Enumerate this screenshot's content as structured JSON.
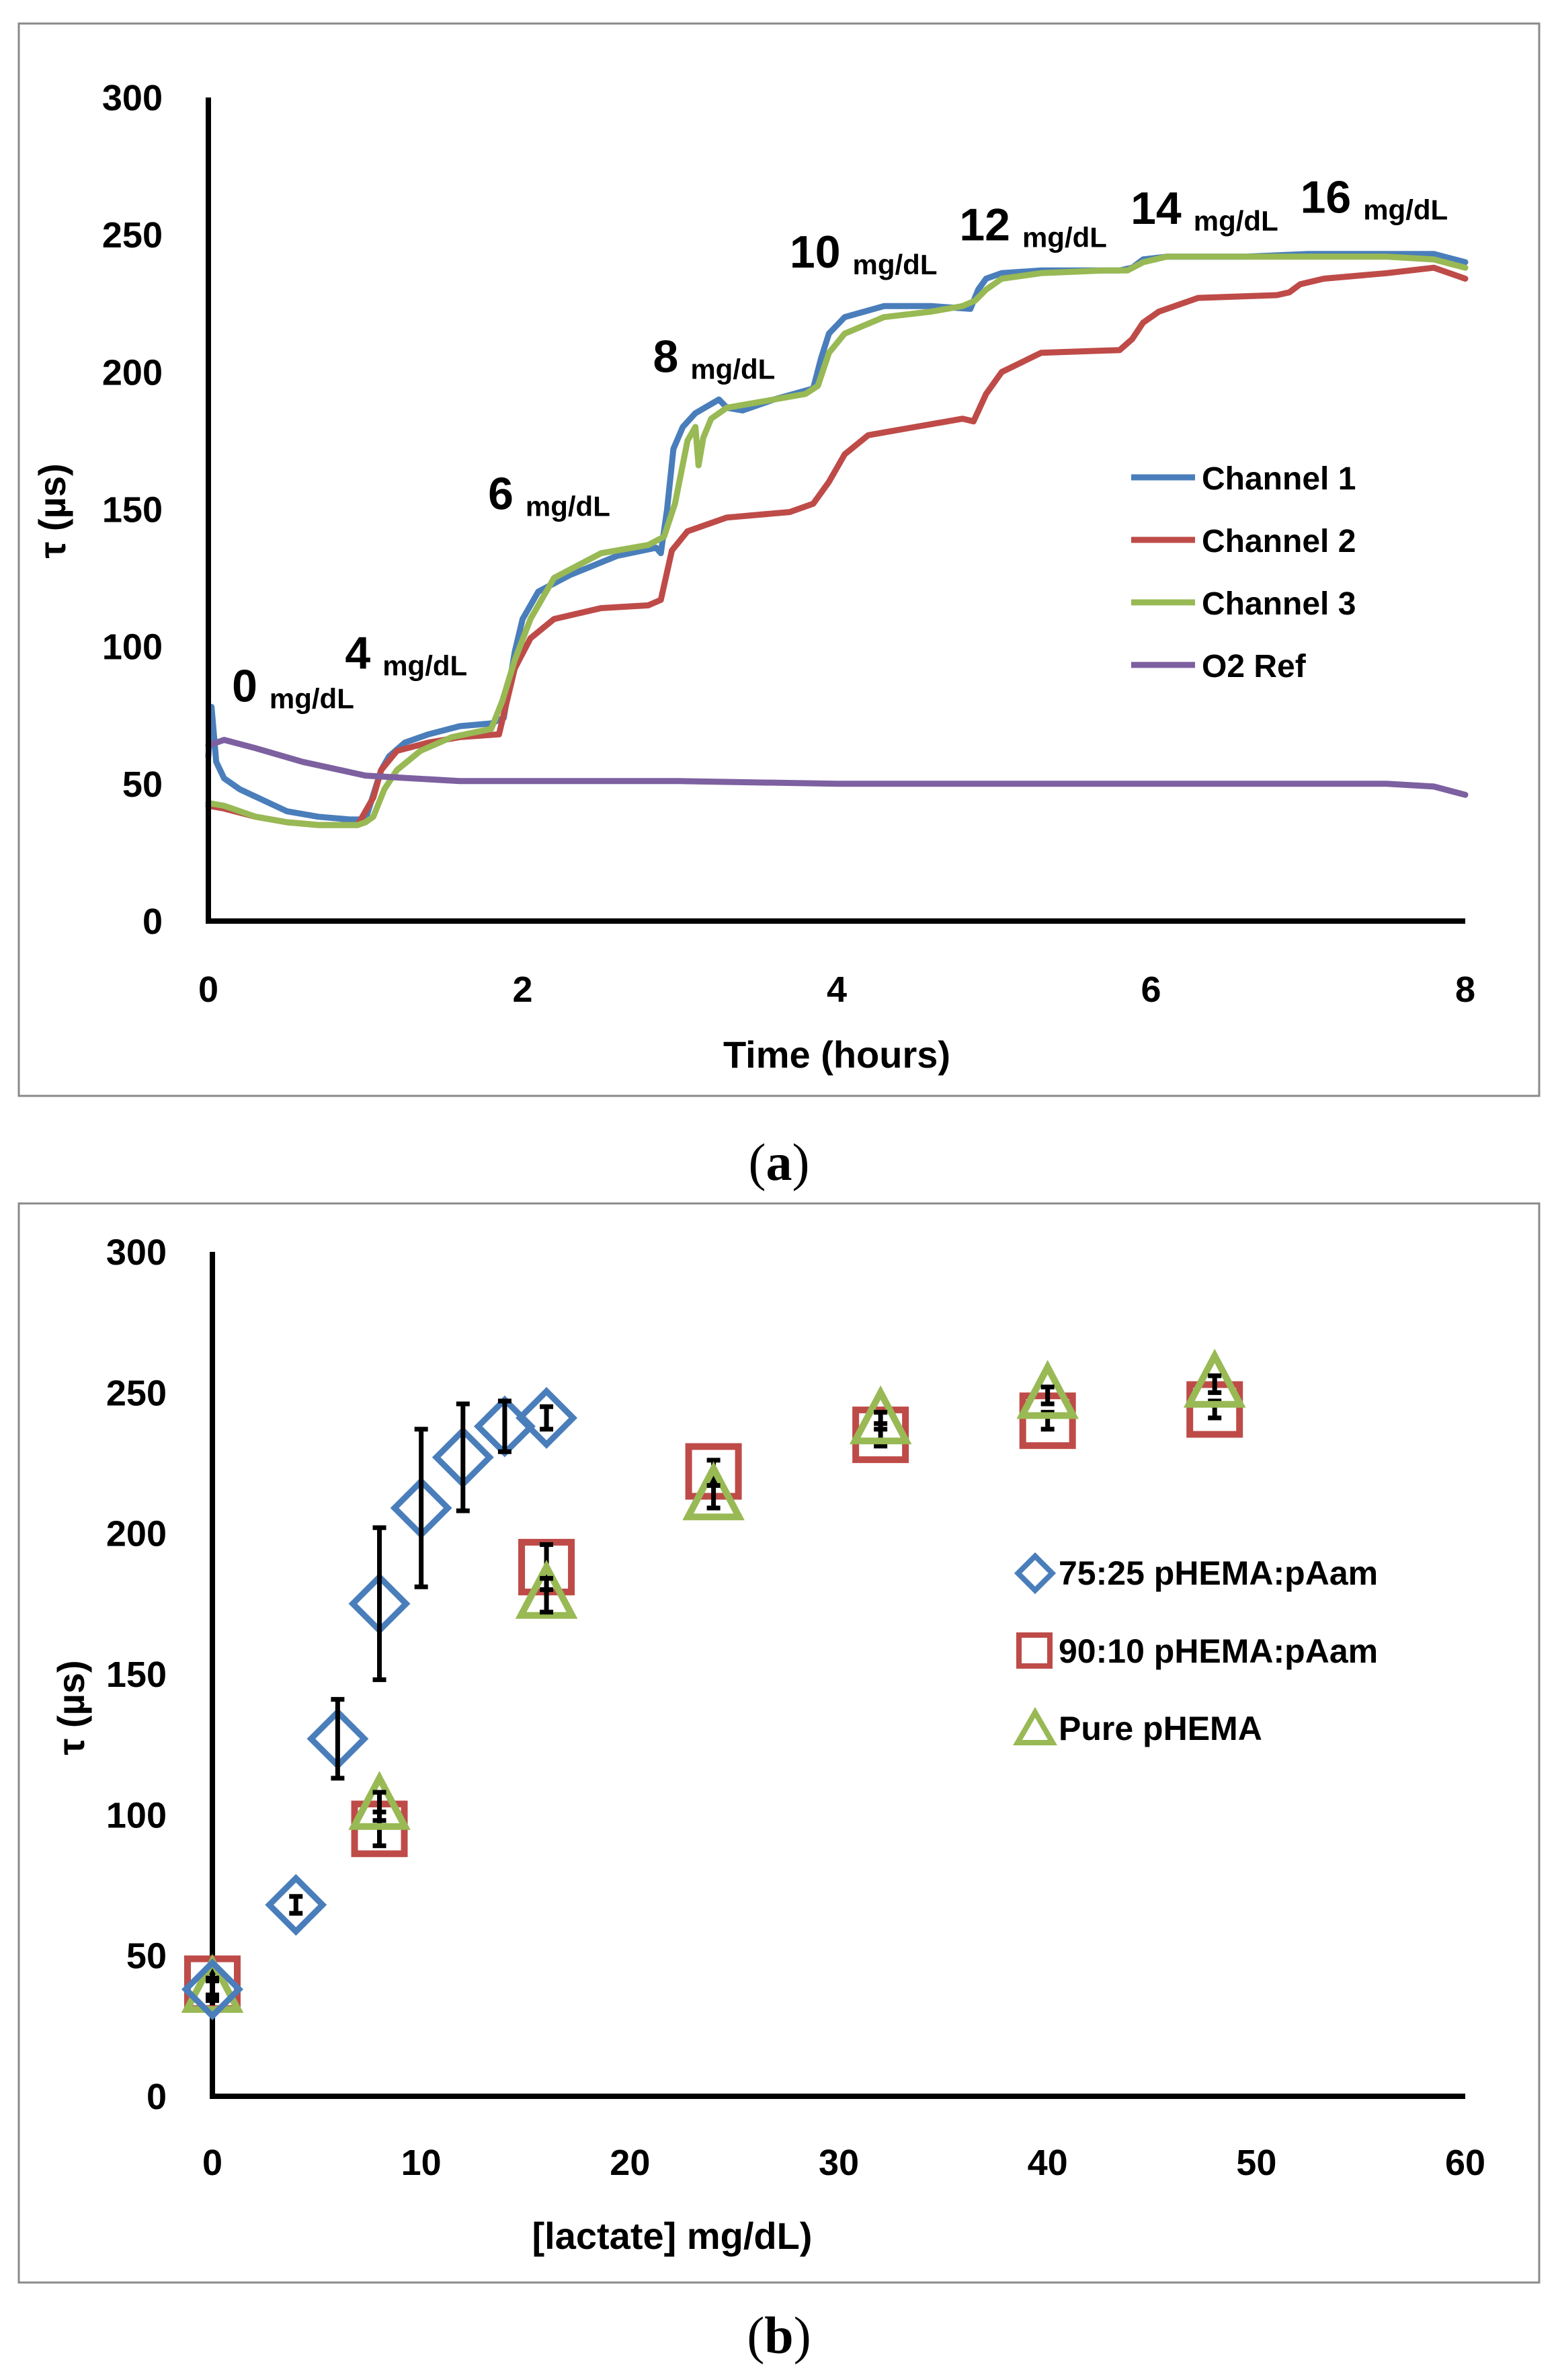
{
  "chart_data": [
    {
      "type": "line",
      "caption": "(a)",
      "caption_parts": {
        "open": "(",
        "letter": "a",
        "close": ")"
      },
      "xlabel": "Time (hours)",
      "ylabel": "τ (µs)",
      "xlim": [
        0,
        8
      ],
      "ylim": [
        0,
        300
      ],
      "xticks": [
        0,
        2,
        4,
        6,
        8
      ],
      "yticks": [
        0,
        50,
        100,
        150,
        200,
        250,
        300
      ],
      "legend_position": "right-middle",
      "annotations": [
        {
          "num": "0",
          "unit": "mg/dL",
          "x": 0.15,
          "y": 80
        },
        {
          "num": "4",
          "unit": "mg/dL",
          "x": 0.87,
          "y": 92
        },
        {
          "num": "6",
          "unit": "mg/dL",
          "x": 1.78,
          "y": 150
        },
        {
          "num": "8",
          "unit": "mg/dL",
          "x": 2.83,
          "y": 200
        },
        {
          "num": "10",
          "unit": "mg/dL",
          "x": 3.7,
          "y": 238
        },
        {
          "num": "12",
          "unit": "mg/dL",
          "x": 4.78,
          "y": 248
        },
        {
          "num": "14",
          "unit": "mg/dL",
          "x": 5.87,
          "y": 254
        },
        {
          "num": "16",
          "unit": "mg/dL",
          "x": 6.95,
          "y": 258
        }
      ],
      "series": [
        {
          "name": "Channel 1",
          "color": "#4a7ebb",
          "x": [
            0,
            0.02,
            0.05,
            0.1,
            0.2,
            0.35,
            0.5,
            0.7,
            0.9,
            1.0,
            1.05,
            1.1,
            1.15,
            1.25,
            1.4,
            1.6,
            1.8,
            1.88,
            1.95,
            2.0,
            2.1,
            2.3,
            2.6,
            2.85,
            2.88,
            2.92,
            2.96,
            3.02,
            3.1,
            3.25,
            3.3,
            3.4,
            3.6,
            3.85,
            3.9,
            3.95,
            4.05,
            4.3,
            4.6,
            4.85,
            4.9,
            4.95,
            5.05,
            5.3,
            5.8,
            5.88,
            5.95,
            6.1,
            6.6,
            7.0,
            7.5,
            7.8,
            8.0
          ],
          "y": [
            60,
            78,
            58,
            52,
            48,
            44,
            40,
            38,
            37,
            37,
            46,
            55,
            60,
            65,
            68,
            71,
            72,
            74,
            98,
            110,
            120,
            126,
            133,
            136,
            134,
            150,
            172,
            180,
            185,
            190,
            187,
            186,
            190,
            194,
            205,
            214,
            220,
            224,
            224,
            223,
            230,
            234,
            236,
            237,
            237,
            238,
            241,
            242,
            242,
            243,
            243,
            243,
            240
          ]
        },
        {
          "name": "Channel 2",
          "color": "#be4b48",
          "x": [
            0,
            0.1,
            0.3,
            0.5,
            0.7,
            0.95,
            1.05,
            1.1,
            1.2,
            1.4,
            1.6,
            1.85,
            1.95,
            2.05,
            2.2,
            2.5,
            2.8,
            2.88,
            2.95,
            3.05,
            3.3,
            3.7,
            3.85,
            3.95,
            4.05,
            4.2,
            4.5,
            4.8,
            4.87,
            4.95,
            5.05,
            5.3,
            5.8,
            5.88,
            5.95,
            6.05,
            6.3,
            6.8,
            6.88,
            6.95,
            7.1,
            7.5,
            7.8,
            8.0
          ],
          "y": [
            42,
            41,
            38,
            36,
            35,
            35,
            45,
            55,
            62,
            65,
            67,
            68,
            92,
            103,
            110,
            114,
            115,
            117,
            135,
            142,
            147,
            149,
            152,
            160,
            170,
            177,
            180,
            183,
            182,
            192,
            200,
            207,
            208,
            212,
            218,
            222,
            227,
            228,
            229,
            232,
            234,
            236,
            238,
            234
          ]
        },
        {
          "name": "Channel 3",
          "color": "#98b954",
          "x": [
            0,
            0.1,
            0.3,
            0.5,
            0.7,
            0.95,
            1.0,
            1.05,
            1.12,
            1.2,
            1.35,
            1.55,
            1.8,
            1.87,
            1.95,
            2.05,
            2.2,
            2.5,
            2.8,
            2.9,
            2.97,
            3.05,
            3.1,
            3.12,
            3.15,
            3.2,
            3.3,
            3.5,
            3.8,
            3.88,
            3.95,
            4.05,
            4.3,
            4.6,
            4.8,
            4.88,
            4.95,
            5.05,
            5.3,
            5.7,
            5.85,
            5.95,
            6.1,
            6.6,
            7.0,
            7.5,
            7.8,
            8.0
          ],
          "y": [
            43,
            42,
            38,
            36,
            35,
            35,
            36,
            38,
            48,
            55,
            62,
            67,
            70,
            80,
            95,
            110,
            125,
            134,
            137,
            140,
            152,
            175,
            180,
            166,
            176,
            183,
            187,
            189,
            192,
            195,
            207,
            214,
            220,
            222,
            224,
            226,
            230,
            234,
            236,
            237,
            237,
            240,
            242,
            242,
            242,
            242,
            241,
            238
          ]
        },
        {
          "name": "O2 Ref",
          "color": "#7d60a0",
          "x": [
            0,
            0.1,
            0.3,
            0.6,
            1.0,
            1.3,
            1.6,
            2.0,
            3.0,
            4.0,
            5.0,
            6.0,
            7.0,
            7.5,
            7.8,
            8.0
          ],
          "y": [
            64,
            66,
            63,
            58,
            53,
            52,
            51,
            51,
            51,
            50,
            50,
            50,
            50,
            50,
            49,
            46
          ]
        }
      ]
    },
    {
      "type": "scatter",
      "caption": "(b)",
      "caption_parts": {
        "open": "(",
        "letter": "b",
        "close": ")"
      },
      "xlabel": "[lactate] mg/dL)",
      "ylabel": "τ (µs)",
      "xlim": [
        0,
        60
      ],
      "ylim": [
        0,
        300
      ],
      "xticks": [
        0,
        10,
        20,
        30,
        40,
        50,
        60
      ],
      "yticks": [
        0,
        50,
        100,
        150,
        200,
        250,
        300
      ],
      "legend_position": "right-middle",
      "series": [
        {
          "name": "75:25 pHEMA:pAam",
          "color": "#4a7ebb",
          "marker": "diamond",
          "x": [
            0,
            4,
            6,
            8,
            10,
            12,
            14,
            16
          ],
          "y": [
            38,
            68,
            127,
            175,
            209,
            227,
            238,
            241
          ],
          "err": [
            4,
            3,
            14,
            27,
            28,
            19,
            9,
            4
          ]
        },
        {
          "name": "90:10 pHEMA:pAam",
          "color": "#be4b48",
          "marker": "square",
          "x": [
            0,
            8,
            16,
            24,
            32,
            40,
            48
          ],
          "y": [
            40,
            95,
            188,
            222,
            235,
            240,
            244
          ],
          "err": [
            4,
            6,
            8,
            4,
            4,
            3,
            3
          ]
        },
        {
          "name": "Pure pHEMA",
          "color": "#98b954",
          "marker": "triangle",
          "x": [
            0,
            8,
            16,
            24,
            32,
            40,
            48
          ],
          "y": [
            38,
            103,
            178,
            213,
            240,
            249,
            253
          ],
          "err": [
            3,
            5,
            6,
            4,
            3,
            3,
            3
          ]
        }
      ]
    }
  ]
}
